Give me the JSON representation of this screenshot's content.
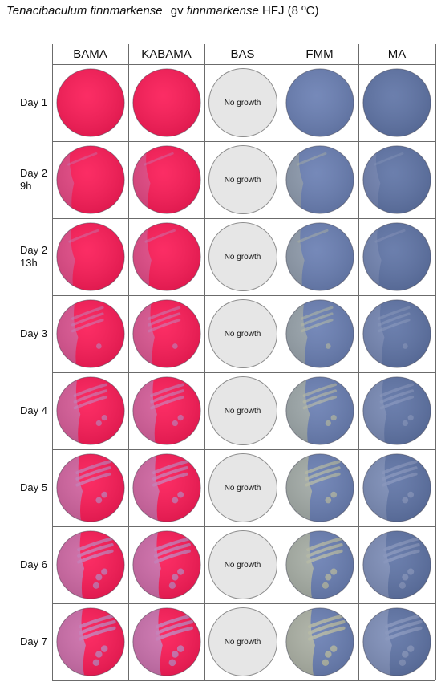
{
  "title": {
    "genus_species": "Tenacibaculum finnmarkense",
    "gv_prefix": "gv",
    "gv_name": "finnmarkense",
    "strain_temp": "HFJ (8 ºC)"
  },
  "columns": [
    "BAMA",
    "KABAMA",
    "BAS",
    "FMM",
    "MA"
  ],
  "rows": [
    {
      "label": "Day 1",
      "growth": 0.0
    },
    {
      "label": "Day 2\n9h",
      "growth": 0.18
    },
    {
      "label": "Day 2\n13h",
      "growth": 0.25
    },
    {
      "label": "Day 3",
      "growth": 0.45
    },
    {
      "label": "Day 4",
      "growth": 0.6
    },
    {
      "label": "Day 5",
      "growth": 0.75
    },
    {
      "label": "Day 6",
      "growth": 0.85
    },
    {
      "label": "Day 7",
      "growth": 0.95
    }
  ],
  "bas_text": "No growth",
  "colors": {
    "bama_agar": "#fb1b57",
    "bama_colony": "#c47ab6",
    "fmm_agar": "#6a7fb3",
    "fmm_colony": "#b4b8a2",
    "ma_agar": "#5f74a6",
    "ma_colony": "#8493bb",
    "bas_agar": "#e6e6e6"
  }
}
